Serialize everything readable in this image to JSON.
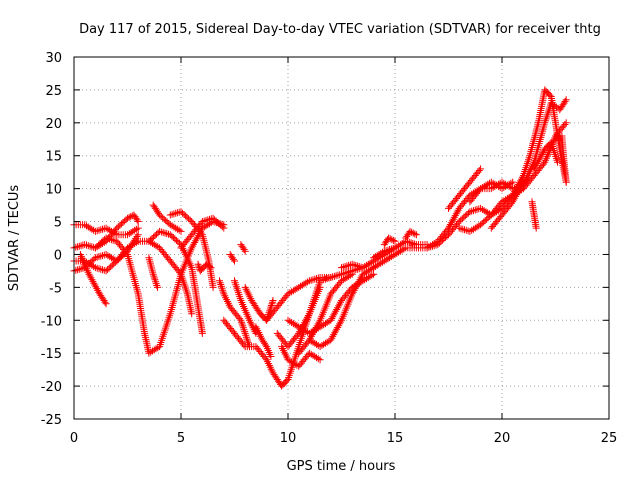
{
  "chart_data": {
    "type": "scatter",
    "title": "Day 117 of 2015, Sidereal Day-to-day VTEC variation (SDTVAR) for receiver thtg",
    "xlabel": "GPS time / hours",
    "ylabel": "SDTVAR / TECUs",
    "xlim": [
      0,
      25
    ],
    "ylim": [
      -25,
      30
    ],
    "xticks": [
      0,
      5,
      10,
      15,
      20,
      25
    ],
    "yticks": [
      -25,
      -20,
      -15,
      -10,
      -5,
      0,
      5,
      10,
      15,
      20,
      25,
      30
    ],
    "grid": true,
    "marker": "+",
    "color": "#ff0000",
    "series": [
      {
        "name": "trace-1",
        "points": [
          [
            0,
            1
          ],
          [
            0.5,
            1.5
          ],
          [
            1,
            1
          ],
          [
            1.5,
            2
          ],
          [
            2,
            4
          ],
          [
            2.5,
            5.5
          ],
          [
            2.8,
            6
          ],
          [
            3,
            5
          ]
        ]
      },
      {
        "name": "trace-2",
        "points": [
          [
            0,
            4.5
          ],
          [
            0.5,
            4.5
          ],
          [
            1,
            3.5
          ],
          [
            1.5,
            4
          ],
          [
            2,
            3
          ],
          [
            2.5,
            3
          ],
          [
            3,
            4
          ]
        ]
      },
      {
        "name": "trace-3",
        "points": [
          [
            0,
            -2.5
          ],
          [
            0.5,
            -2
          ],
          [
            1,
            -0.5
          ],
          [
            1.5,
            0
          ],
          [
            2,
            -1
          ],
          [
            2.5,
            0.5
          ],
          [
            3,
            3
          ]
        ]
      },
      {
        "name": "trace-4",
        "points": [
          [
            0,
            -1
          ],
          [
            0.5,
            -1
          ],
          [
            1,
            -2
          ],
          [
            1.5,
            -2.5
          ],
          [
            2,
            -1
          ],
          [
            2.5,
            1
          ],
          [
            3,
            2
          ]
        ]
      },
      {
        "name": "trace-5",
        "points": [
          [
            0.3,
            0
          ],
          [
            0.7,
            -3
          ],
          [
            1.2,
            -6
          ],
          [
            1.5,
            -7.5
          ]
        ]
      },
      {
        "name": "trace-6",
        "points": [
          [
            1,
            1
          ],
          [
            1.5,
            2.5
          ],
          [
            2,
            2
          ],
          [
            2.5,
            0
          ],
          [
            3,
            -6
          ],
          [
            3.3,
            -12
          ],
          [
            3.5,
            -15
          ],
          [
            4,
            -14
          ],
          [
            4.5,
            -9
          ],
          [
            5,
            -3
          ],
          [
            5.5,
            1
          ],
          [
            6,
            4
          ],
          [
            6.5,
            5
          ],
          [
            7,
            4.5
          ]
        ]
      },
      {
        "name": "trace-7",
        "points": [
          [
            3,
            2
          ],
          [
            3.5,
            2
          ],
          [
            4,
            1
          ],
          [
            4.5,
            -1
          ],
          [
            5,
            -3
          ],
          [
            5.3,
            -6
          ],
          [
            5.5,
            -9
          ]
        ]
      },
      {
        "name": "trace-8",
        "points": [
          [
            3.5,
            2
          ],
          [
            4,
            3.5
          ],
          [
            4.5,
            3
          ],
          [
            5,
            1.5
          ],
          [
            5.5,
            -2
          ],
          [
            5.7,
            -6
          ],
          [
            5.9,
            -10
          ],
          [
            6,
            -12
          ]
        ]
      },
      {
        "name": "trace-9",
        "points": [
          [
            3.5,
            -0.5
          ],
          [
            3.7,
            -3
          ],
          [
            3.9,
            -5
          ]
        ]
      },
      {
        "name": "trace-10",
        "points": [
          [
            4.5,
            6
          ],
          [
            5,
            6.5
          ],
          [
            5.5,
            5
          ],
          [
            6,
            3
          ],
          [
            6.3,
            -1
          ],
          [
            6.5,
            -5
          ]
        ]
      },
      {
        "name": "trace-11",
        "points": [
          [
            5,
            1
          ],
          [
            5.5,
            3
          ],
          [
            6,
            5
          ],
          [
            6.5,
            5.5
          ],
          [
            7,
            4
          ]
        ]
      },
      {
        "name": "trace-12",
        "points": [
          [
            3.7,
            7.5
          ],
          [
            4,
            6
          ],
          [
            4.5,
            4.5
          ],
          [
            5,
            3.5
          ]
        ]
      },
      {
        "name": "trace-13",
        "points": [
          [
            5.8,
            -1.5
          ],
          [
            5.9,
            -2.5
          ],
          [
            6.2,
            -1.5
          ],
          [
            6.4,
            -2
          ]
        ]
      },
      {
        "name": "trace-14",
        "points": [
          [
            6.8,
            -4
          ],
          [
            7,
            -6
          ],
          [
            7.3,
            -8
          ],
          [
            7.8,
            -10
          ],
          [
            8,
            -12
          ],
          [
            8.2,
            -14
          ]
        ]
      },
      {
        "name": "trace-15",
        "points": [
          [
            7.3,
            0
          ],
          [
            7.5,
            -1
          ]
        ]
      },
      {
        "name": "trace-16",
        "points": [
          [
            7.8,
            1.5
          ],
          [
            8,
            0.5
          ]
        ]
      },
      {
        "name": "trace-17",
        "points": [
          [
            7.5,
            -4
          ],
          [
            7.8,
            -7
          ],
          [
            8.2,
            -10
          ],
          [
            8.5,
            -12
          ]
        ]
      },
      {
        "name": "trace-18",
        "points": [
          [
            8,
            -5
          ],
          [
            8.3,
            -7
          ],
          [
            8.7,
            -9
          ],
          [
            9,
            -10
          ],
          [
            9.2,
            -8
          ],
          [
            9.3,
            -7
          ]
        ]
      },
      {
        "name": "trace-19",
        "points": [
          [
            8.5,
            -11
          ],
          [
            8.8,
            -13
          ],
          [
            9,
            -14
          ],
          [
            9.2,
            -15.5
          ]
        ]
      },
      {
        "name": "trace-20",
        "points": [
          [
            7,
            -10
          ],
          [
            7.5,
            -12
          ],
          [
            8,
            -14
          ],
          [
            8.5,
            -14
          ],
          [
            9,
            -16
          ],
          [
            9.3,
            -18
          ],
          [
            9.7,
            -20
          ],
          [
            10,
            -19
          ],
          [
            10.5,
            -14
          ],
          [
            11,
            -9
          ],
          [
            11.5,
            -4
          ],
          [
            12,
            -3.5
          ],
          [
            12.5,
            -3
          ],
          [
            13,
            -2.5
          ],
          [
            13.5,
            -2
          ],
          [
            14,
            -1
          ],
          [
            14.5,
            0
          ],
          [
            15,
            1
          ]
        ]
      },
      {
        "name": "trace-21",
        "points": [
          [
            9,
            -10
          ],
          [
            9.5,
            -8
          ],
          [
            10,
            -6
          ],
          [
            10.5,
            -5
          ],
          [
            11,
            -4
          ],
          [
            11.5,
            -3.5
          ],
          [
            12,
            -3.5
          ]
        ]
      },
      {
        "name": "trace-22",
        "points": [
          [
            9.5,
            -12
          ],
          [
            10,
            -14
          ],
          [
            10.5,
            -12
          ],
          [
            11,
            -9
          ],
          [
            11.5,
            -5
          ]
        ]
      },
      {
        "name": "trace-23",
        "points": [
          [
            9.7,
            -14
          ],
          [
            10,
            -16
          ],
          [
            10.5,
            -17
          ],
          [
            11,
            -15
          ],
          [
            11.5,
            -16
          ]
        ]
      },
      {
        "name": "trace-24",
        "points": [
          [
            10,
            -10
          ],
          [
            10.5,
            -11
          ],
          [
            11,
            -12
          ],
          [
            11.5,
            -11
          ],
          [
            12,
            -10
          ],
          [
            12.5,
            -7
          ],
          [
            13,
            -5
          ],
          [
            13.5,
            -4
          ],
          [
            14,
            -3
          ]
        ]
      },
      {
        "name": "trace-25",
        "points": [
          [
            11,
            -13
          ],
          [
            11.5,
            -14
          ],
          [
            12,
            -13
          ],
          [
            12.5,
            -10
          ],
          [
            13,
            -6
          ],
          [
            13.5,
            -3
          ],
          [
            14,
            -2
          ]
        ]
      },
      {
        "name": "trace-26",
        "points": [
          [
            10.5,
            -15
          ],
          [
            11,
            -13
          ],
          [
            11.5,
            -10
          ],
          [
            12,
            -6
          ],
          [
            12.5,
            -4
          ],
          [
            13,
            -3
          ]
        ]
      },
      {
        "name": "trace-27",
        "points": [
          [
            12.5,
            -2
          ],
          [
            13,
            -1.5
          ],
          [
            13.5,
            -2
          ]
        ]
      },
      {
        "name": "trace-28",
        "points": [
          [
            14,
            -0.5
          ],
          [
            14.5,
            0.5
          ],
          [
            15,
            1
          ],
          [
            15.5,
            2
          ],
          [
            16,
            1.5
          ],
          [
            16.5,
            1.5
          ]
        ]
      },
      {
        "name": "trace-29",
        "points": [
          [
            14.5,
            1.5
          ],
          [
            14.7,
            2.5
          ],
          [
            15,
            2
          ]
        ]
      },
      {
        "name": "trace-30",
        "points": [
          [
            15.5,
            2.5
          ],
          [
            15.7,
            3.5
          ],
          [
            16,
            3
          ]
        ]
      },
      {
        "name": "trace-31",
        "points": [
          [
            14,
            -2
          ],
          [
            14.5,
            -1
          ],
          [
            15,
            0
          ],
          [
            15.5,
            1
          ],
          [
            16,
            1
          ],
          [
            16.5,
            1
          ],
          [
            17,
            1.5
          ],
          [
            17.5,
            3
          ],
          [
            18,
            5
          ],
          [
            18.5,
            6.5
          ],
          [
            19,
            7
          ],
          [
            19.5,
            6
          ],
          [
            20,
            7
          ],
          [
            20.5,
            9
          ],
          [
            21,
            10
          ],
          [
            21.5,
            12
          ],
          [
            22,
            14
          ],
          [
            22.5,
            18
          ],
          [
            23,
            20
          ]
        ]
      },
      {
        "name": "trace-32",
        "points": [
          [
            16.5,
            1
          ],
          [
            17,
            2
          ],
          [
            17.5,
            4
          ],
          [
            18,
            7
          ],
          [
            18.5,
            9
          ],
          [
            19,
            10
          ],
          [
            19.5,
            10
          ],
          [
            20,
            11
          ],
          [
            20.5,
            10
          ],
          [
            21,
            10.5
          ],
          [
            21.5,
            14
          ],
          [
            22,
            20
          ],
          [
            22.3,
            23
          ],
          [
            22.7,
            22
          ],
          [
            23,
            23.5
          ]
        ]
      },
      {
        "name": "trace-33",
        "points": [
          [
            17.5,
            7
          ],
          [
            18,
            9
          ],
          [
            18.5,
            11
          ],
          [
            19,
            13
          ]
        ]
      },
      {
        "name": "trace-34",
        "points": [
          [
            18.5,
            8
          ],
          [
            19,
            10
          ],
          [
            19.5,
            11
          ],
          [
            20,
            10
          ],
          [
            20.5,
            11
          ]
        ]
      },
      {
        "name": "trace-35",
        "points": [
          [
            18,
            4
          ],
          [
            18.5,
            3.5
          ],
          [
            19,
            4.5
          ],
          [
            19.5,
            6
          ],
          [
            20,
            8
          ],
          [
            20.5,
            9
          ],
          [
            21,
            12
          ],
          [
            21.3,
            15
          ],
          [
            21.7,
            20
          ],
          [
            22,
            25
          ],
          [
            22.3,
            24
          ],
          [
            22.5,
            20
          ],
          [
            22.7,
            16
          ],
          [
            23,
            11
          ]
        ]
      },
      {
        "name": "trace-36",
        "points": [
          [
            19.5,
            4
          ],
          [
            20,
            6
          ],
          [
            20.5,
            8
          ],
          [
            21,
            11
          ]
        ]
      },
      {
        "name": "trace-37",
        "points": [
          [
            21.4,
            8
          ],
          [
            21.5,
            6
          ],
          [
            21.6,
            4
          ]
        ]
      },
      {
        "name": "trace-38",
        "points": [
          [
            22.8,
            18
          ],
          [
            22.9,
            14
          ],
          [
            23,
            11
          ]
        ]
      },
      {
        "name": "trace-39",
        "points": [
          [
            21.5,
            13
          ],
          [
            22,
            16
          ],
          [
            22.3,
            17
          ],
          [
            22.6,
            14
          ]
        ]
      }
    ]
  }
}
